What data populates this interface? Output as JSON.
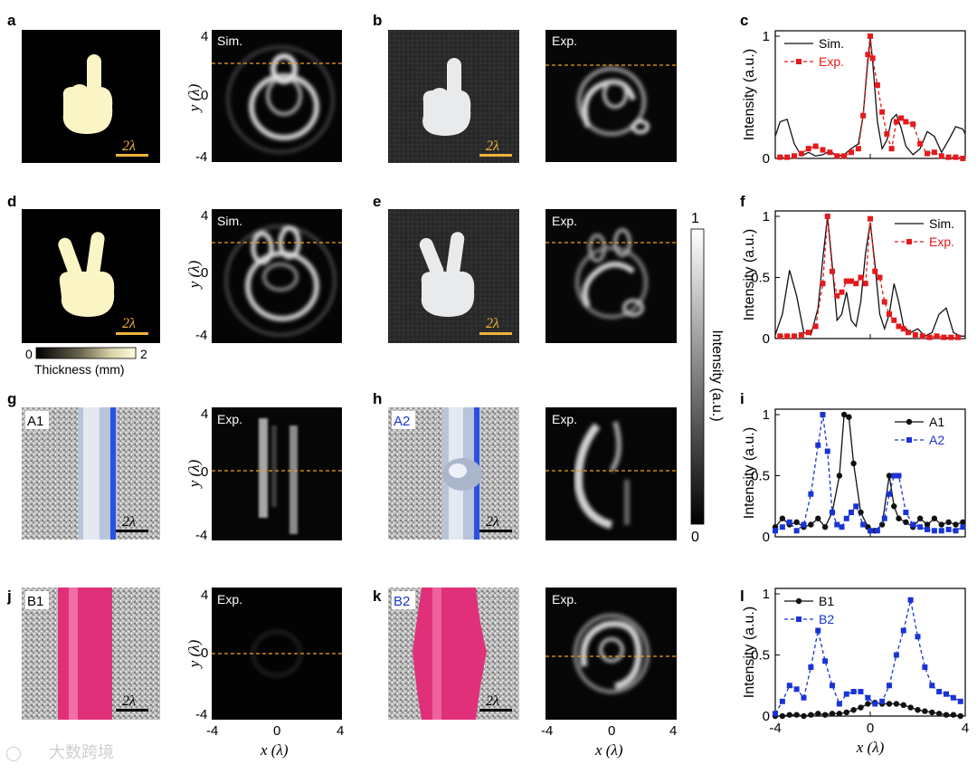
{
  "figure": {
    "panel_letters": [
      "a",
      "b",
      "c",
      "d",
      "e",
      "f",
      "g",
      "h",
      "i",
      "j",
      "k",
      "l"
    ],
    "scale_bar_text": "2λ",
    "colorbar": {
      "title": "Intensity (a.u.)",
      "max_label": "1",
      "min_label": "0"
    },
    "thickness_bar": {
      "title": "Thickness (mm)",
      "min_label": "0",
      "max_label": "2"
    },
    "map_axis": {
      "ylabel": "y (λ)",
      "xlabel": "x (λ)",
      "ticks": [
        "4",
        "0",
        "-4"
      ],
      "xticks": [
        "-4",
        "0",
        "4"
      ]
    },
    "map_labels": {
      "sim": "Sim.",
      "exp": "Exp."
    },
    "photo_labels": {
      "A1": "A1",
      "A2": "A2",
      "B1": "B1",
      "B2": "B2"
    },
    "colors": {
      "sim_line": "#111111",
      "exp_line": "#e41a1c",
      "a1_line": "#111111",
      "a2_line": "#1a33d6",
      "b1_line": "#111111",
      "b2_line": "#1a33d6",
      "dash_orange": "#f0a020",
      "shape_fill": "#fbf5c6",
      "pink": "#e0307a"
    },
    "watermark": "大数跨境"
  },
  "chart_data": [
    {
      "panel": "c",
      "type": "line",
      "ylabel": "Intensity (a.u.)",
      "xlabel": "",
      "ylim": [
        0,
        1
      ],
      "xlim": [
        -4,
        4
      ],
      "yticks": [
        "0",
        "1"
      ],
      "legend": "top-left",
      "series": [
        {
          "name": "Sim.",
          "style": "solid",
          "marker": "none",
          "x": [
            -4,
            -3.8,
            -3.5,
            -3.2,
            -2.9,
            -2.6,
            -2.3,
            -2.0,
            -1.7,
            -1.4,
            -1.1,
            -0.8,
            -0.5,
            -0.3,
            -0.1,
            0.0,
            0.1,
            0.3,
            0.5,
            0.7,
            0.9,
            1.1,
            1.3,
            1.5,
            1.8,
            2.1,
            2.4,
            2.7,
            3.0,
            3.3,
            3.6,
            3.9,
            4.0
          ],
          "y": [
            0.18,
            0.3,
            0.32,
            0.12,
            0.02,
            0.05,
            0.02,
            0.03,
            0.06,
            0.02,
            0.03,
            0.08,
            0.12,
            0.35,
            0.8,
            0.98,
            0.8,
            0.3,
            0.08,
            0.15,
            0.32,
            0.36,
            0.25,
            0.1,
            0.03,
            0.08,
            0.22,
            0.18,
            0.05,
            0.15,
            0.26,
            0.24,
            0.2
          ]
        },
        {
          "name": "Exp.",
          "style": "dashed",
          "marker": "square",
          "x": [
            -3.8,
            -3.5,
            -3.2,
            -2.9,
            -2.6,
            -2.3,
            -2.0,
            -1.7,
            -1.4,
            -1.1,
            -0.8,
            -0.5,
            -0.3,
            -0.1,
            0.0,
            0.1,
            0.3,
            0.5,
            0.7,
            0.9,
            1.1,
            1.3,
            1.5,
            1.8,
            2.1,
            2.4,
            2.7,
            3.0,
            3.3,
            3.6,
            3.9
          ],
          "y": [
            0.01,
            0.01,
            0.02,
            0.04,
            0.08,
            0.1,
            0.07,
            0.05,
            0.02,
            0.02,
            0.05,
            0.08,
            0.35,
            0.85,
            1.0,
            0.82,
            0.6,
            0.38,
            0.2,
            0.08,
            0.3,
            0.33,
            0.3,
            0.28,
            0.12,
            0.04,
            0.05,
            0.02,
            0.01,
            0.01,
            0.0
          ]
        }
      ]
    },
    {
      "panel": "f",
      "type": "line",
      "ylabel": "Intensity (a.u.)",
      "xlabel": "",
      "ylim": [
        0,
        1
      ],
      "xlim": [
        -4,
        4
      ],
      "yticks": [
        "0",
        "0.5",
        "1"
      ],
      "legend": "top-right",
      "series": [
        {
          "name": "Sim.",
          "style": "solid",
          "marker": "none",
          "x": [
            -4,
            -3.7,
            -3.4,
            -3.1,
            -2.8,
            -2.5,
            -2.2,
            -2.0,
            -1.8,
            -1.6,
            -1.4,
            -1.2,
            -1.0,
            -0.8,
            -0.6,
            -0.4,
            -0.2,
            0.0,
            0.2,
            0.4,
            0.6,
            0.8,
            1.0,
            1.2,
            1.4,
            1.7,
            2.0,
            2.3,
            2.6,
            2.9,
            3.2,
            3.5,
            3.8,
            4.0
          ],
          "y": [
            0.03,
            0.2,
            0.56,
            0.35,
            0.05,
            0.03,
            0.25,
            0.65,
            1.0,
            0.6,
            0.15,
            0.2,
            0.38,
            0.15,
            0.1,
            0.3,
            0.7,
            0.95,
            0.6,
            0.2,
            0.08,
            0.2,
            0.45,
            0.3,
            0.1,
            0.05,
            0.08,
            0.02,
            0.05,
            0.2,
            0.25,
            0.05,
            0.02,
            0.02
          ]
        },
        {
          "name": "Exp.",
          "style": "dashed",
          "marker": "square",
          "x": [
            -3.8,
            -3.5,
            -3.2,
            -2.9,
            -2.6,
            -2.3,
            -2.0,
            -1.8,
            -1.6,
            -1.4,
            -1.2,
            -1.0,
            -0.8,
            -0.6,
            -0.4,
            -0.2,
            0.0,
            0.2,
            0.4,
            0.6,
            0.8,
            1.0,
            1.2,
            1.4,
            1.6,
            1.9,
            2.2,
            2.5,
            2.8,
            3.1,
            3.4,
            3.7
          ],
          "y": [
            0.02,
            0.02,
            0.02,
            0.03,
            0.05,
            0.1,
            0.45,
            1.0,
            0.55,
            0.35,
            0.38,
            0.47,
            0.47,
            0.45,
            0.5,
            0.45,
            0.98,
            0.55,
            0.5,
            0.3,
            0.2,
            0.15,
            0.1,
            0.08,
            0.05,
            0.03,
            0.02,
            0.01,
            0.02,
            0.01,
            0.01,
            0.01
          ]
        }
      ]
    },
    {
      "panel": "i",
      "type": "line",
      "ylabel": "Intensity (a.u.)",
      "xlabel": "",
      "ylim": [
        0,
        1
      ],
      "xlim": [
        -4,
        4
      ],
      "yticks": [
        "0",
        "0.5",
        "1"
      ],
      "legend": "top-right",
      "series": [
        {
          "name": "A1",
          "style": "solid",
          "marker": "circle",
          "x": [
            -4,
            -3.7,
            -3.4,
            -3.1,
            -2.8,
            -2.5,
            -2.2,
            -1.9,
            -1.6,
            -1.3,
            -1.1,
            -0.9,
            -0.7,
            -0.4,
            -0.1,
            0.2,
            0.5,
            0.8,
            1.0,
            1.2,
            1.5,
            1.8,
            2.1,
            2.4,
            2.7,
            3.0,
            3.3,
            3.6,
            3.9
          ],
          "y": [
            0.08,
            0.15,
            0.1,
            0.12,
            0.08,
            0.1,
            0.15,
            0.08,
            0.2,
            0.5,
            1.0,
            0.98,
            0.6,
            0.2,
            0.08,
            0.05,
            0.1,
            0.5,
            0.25,
            0.15,
            0.12,
            0.08,
            0.15,
            0.1,
            0.15,
            0.1,
            0.12,
            0.1,
            0.12
          ]
        },
        {
          "name": "A2",
          "style": "dashed",
          "marker": "square",
          "x": [
            -4,
            -3.7,
            -3.4,
            -3.1,
            -2.8,
            -2.5,
            -2.2,
            -2.0,
            -1.8,
            -1.6,
            -1.4,
            -1.2,
            -1.0,
            -0.8,
            -0.6,
            -0.3,
            0.0,
            0.3,
            0.6,
            0.8,
            1.0,
            1.2,
            1.5,
            1.8,
            2.1,
            2.4,
            2.7,
            3.0,
            3.3,
            3.6,
            3.9
          ],
          "y": [
            0.05,
            0.08,
            0.12,
            0.05,
            0.1,
            0.35,
            0.75,
            1.0,
            0.7,
            0.2,
            0.1,
            0.08,
            0.15,
            0.2,
            0.25,
            0.1,
            0.05,
            0.05,
            0.15,
            0.35,
            0.5,
            0.5,
            0.2,
            0.1,
            0.08,
            0.06,
            0.05,
            0.05,
            0.06,
            0.05,
            0.08
          ]
        }
      ]
    },
    {
      "panel": "l",
      "type": "line",
      "ylabel": "Intensity (a.u.)",
      "xlabel": "x (λ)",
      "ylim": [
        0,
        1
      ],
      "xlim": [
        -4,
        4
      ],
      "yticks": [
        "0",
        "0.5",
        "1"
      ],
      "xticks": [
        "-4",
        "0",
        "4"
      ],
      "legend": "top-left",
      "series": [
        {
          "name": "B1",
          "style": "solid",
          "marker": "circle",
          "x": [
            -4,
            -3.7,
            -3.4,
            -3.1,
            -2.8,
            -2.5,
            -2.2,
            -1.9,
            -1.6,
            -1.3,
            -1.0,
            -0.7,
            -0.4,
            -0.1,
            0.2,
            0.5,
            0.8,
            1.1,
            1.4,
            1.7,
            2.0,
            2.3,
            2.6,
            2.9,
            3.2,
            3.5,
            3.8
          ],
          "y": [
            0.0,
            0.0,
            0.01,
            0.01,
            0.0,
            0.01,
            0.02,
            0.01,
            0.02,
            0.02,
            0.03,
            0.05,
            0.07,
            0.1,
            0.11,
            0.1,
            0.1,
            0.1,
            0.09,
            0.07,
            0.05,
            0.04,
            0.03,
            0.02,
            0.01,
            0.01,
            0.0
          ]
        },
        {
          "name": "B2",
          "style": "dashed",
          "marker": "square",
          "x": [
            -4,
            -3.7,
            -3.4,
            -3.1,
            -2.8,
            -2.5,
            -2.2,
            -1.9,
            -1.6,
            -1.3,
            -1.0,
            -0.7,
            -0.4,
            -0.1,
            0.2,
            0.5,
            0.8,
            1.1,
            1.4,
            1.7,
            2.0,
            2.3,
            2.6,
            2.9,
            3.2,
            3.5,
            3.8
          ],
          "y": [
            0.02,
            0.12,
            0.25,
            0.22,
            0.15,
            0.4,
            0.7,
            0.45,
            0.25,
            0.1,
            0.18,
            0.2,
            0.2,
            0.15,
            0.1,
            0.12,
            0.25,
            0.5,
            0.7,
            0.95,
            0.65,
            0.4,
            0.25,
            0.2,
            0.18,
            0.15,
            0.12
          ]
        }
      ]
    }
  ]
}
